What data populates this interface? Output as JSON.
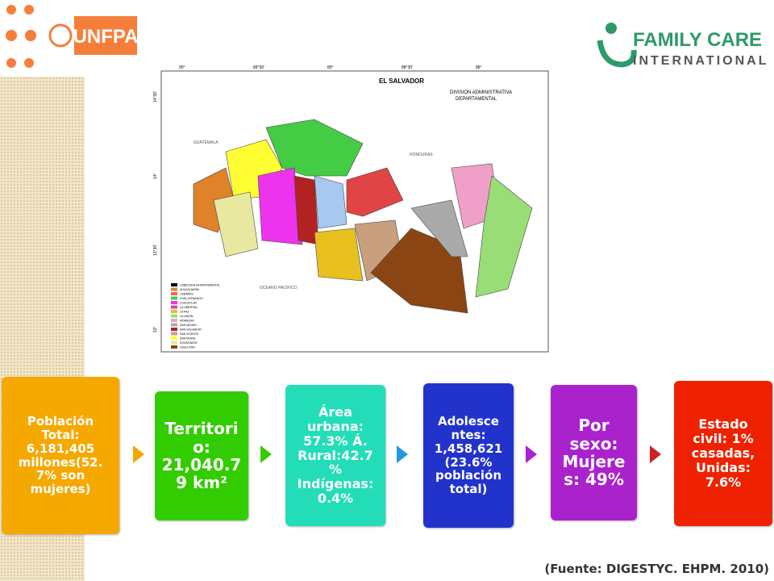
{
  "logos": {
    "left": "UNFPA",
    "right_top": "FAMILY CARE",
    "right_bottom": "INTERNATIONAL"
  },
  "map": {
    "title": "EL SALVADOR",
    "subtitle_1": "DIVISION ADMINISTRATIVA",
    "subtitle_2": "DEPARTAMENTAL",
    "labels": [
      "GUATEMALA",
      "HONDURAS",
      "OCEANO PACIFICO"
    ],
    "top_coords": [
      "90°",
      "89°30'",
      "89°",
      "88°30'",
      "88°"
    ],
    "side_coords": [
      "14°30'",
      "14°",
      "13°30'",
      "13°"
    ],
    "legend": [
      "CABECERA DEPARTAMENTAL",
      "AHUACHAPAN",
      "CABAÑAS",
      "CHALATENANGO",
      "CUSCATLAN",
      "LA LIBERTAD",
      "LA PAZ",
      "LA UNION",
      "MORAZAN",
      "SAN MIGUEL",
      "SAN SALVADOR",
      "SAN VICENTE",
      "SANTA ANA",
      "SONSONATE",
      "USULUTAN"
    ]
  },
  "boxes": [
    {
      "lines": [
        "Población",
        "Total:",
        "6,181,405",
        "millones(52.",
        "7% son",
        "mujeres)"
      ]
    },
    {
      "lines": [
        "Territori",
        "o:",
        "21,040.7",
        "9 km²"
      ]
    },
    {
      "lines": [
        "Área",
        "urbana:",
        "57.3%   Á.",
        "Rural:42.7",
        "%",
        "Indígenas:",
        "0.4%"
      ]
    },
    {
      "lines": [
        "Adolesce",
        "ntes:",
        "1,458,621",
        "(23.6%",
        "población",
        "total)"
      ]
    },
    {
      "lines": [
        "Por",
        "sexo:",
        "Mujere",
        "s: 49%"
      ]
    },
    {
      "lines": [
        "Estado",
        "civil: 1%",
        "casadas,",
        "Unidas:",
        "7.6%"
      ]
    }
  ],
  "source": "(Fuente: DIGESTYC. EHPM. 2010)"
}
